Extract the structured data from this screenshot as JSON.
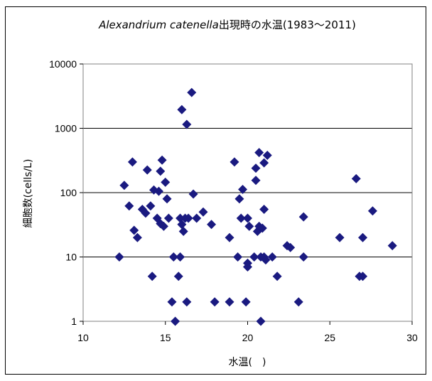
{
  "chart_data": {
    "type": "scatter",
    "title_italic": "Alexandrium catenella",
    "title_rest": "出現時の水温(1983～2011)",
    "xlabel": "水温(　)",
    "ylabel": "細胞数(cells/L)",
    "xlim": [
      10,
      30
    ],
    "ylim": [
      1,
      10000
    ],
    "yscale": "log",
    "grid": "horizontal",
    "x_ticks": [
      "10",
      "15",
      "20",
      "25",
      "30"
    ],
    "y_ticks": [
      "1",
      "10",
      "100",
      "1000",
      "10000"
    ],
    "marker": "diamond",
    "marker_color": "#1a1a80",
    "points": [
      [
        12.2,
        10
      ],
      [
        12.5,
        130
      ],
      [
        12.8,
        62
      ],
      [
        13.0,
        300
      ],
      [
        13.1,
        26
      ],
      [
        13.3,
        20
      ],
      [
        13.6,
        55
      ],
      [
        13.8,
        48
      ],
      [
        13.9,
        225
      ],
      [
        14.1,
        62
      ],
      [
        14.2,
        5
      ],
      [
        14.3,
        110
      ],
      [
        14.5,
        40
      ],
      [
        14.6,
        105
      ],
      [
        14.7,
        215
      ],
      [
        14.7,
        33
      ],
      [
        14.8,
        320
      ],
      [
        14.9,
        30
      ],
      [
        15.0,
        145
      ],
      [
        15.1,
        80
      ],
      [
        15.2,
        40
      ],
      [
        15.4,
        2
      ],
      [
        15.5,
        10
      ],
      [
        15.6,
        1
      ],
      [
        15.8,
        5
      ],
      [
        15.9,
        10
      ],
      [
        15.9,
        40
      ],
      [
        16.0,
        1950
      ],
      [
        16.0,
        32
      ],
      [
        16.1,
        25
      ],
      [
        16.2,
        40
      ],
      [
        16.3,
        1150
      ],
      [
        16.3,
        2
      ],
      [
        16.4,
        40
      ],
      [
        16.6,
        3600
      ],
      [
        16.7,
        95
      ],
      [
        16.9,
        40
      ],
      [
        17.3,
        50
      ],
      [
        17.8,
        32
      ],
      [
        18.0,
        2
      ],
      [
        18.9,
        2
      ],
      [
        18.9,
        20
      ],
      [
        19.2,
        300
      ],
      [
        19.4,
        10
      ],
      [
        19.5,
        80
      ],
      [
        19.6,
        40
      ],
      [
        19.7,
        112
      ],
      [
        19.9,
        2
      ],
      [
        20.0,
        8
      ],
      [
        20.0,
        40
      ],
      [
        20.1,
        30
      ],
      [
        20.0,
        7
      ],
      [
        20.4,
        10
      ],
      [
        20.5,
        240
      ],
      [
        20.5,
        155
      ],
      [
        20.6,
        25
      ],
      [
        20.7,
        420
      ],
      [
        20.7,
        30
      ],
      [
        20.8,
        1
      ],
      [
        20.8,
        10
      ],
      [
        20.9,
        28
      ],
      [
        21.0,
        55
      ],
      [
        21.0,
        10
      ],
      [
        21.0,
        290
      ],
      [
        21.1,
        9
      ],
      [
        21.2,
        380
      ],
      [
        21.5,
        10
      ],
      [
        21.8,
        5
      ],
      [
        22.4,
        15
      ],
      [
        22.6,
        14
      ],
      [
        23.1,
        2
      ],
      [
        23.4,
        42
      ],
      [
        23.4,
        10
      ],
      [
        25.6,
        20
      ],
      [
        26.6,
        165
      ],
      [
        26.8,
        5
      ],
      [
        27.0,
        5
      ],
      [
        27.0,
        20
      ],
      [
        27.6,
        52
      ],
      [
        28.8,
        15
      ]
    ]
  }
}
